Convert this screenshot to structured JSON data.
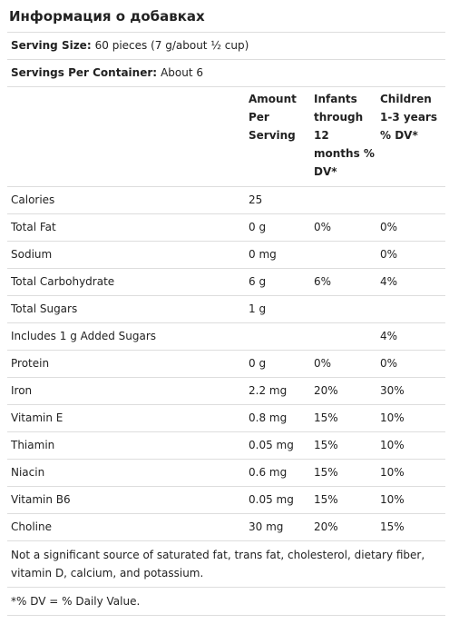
{
  "title": "Информация о добавках",
  "serving_size": {
    "label": "Serving Size:",
    "value": "60 pieces (7 g/about ½ cup)"
  },
  "servings_per_container": {
    "label": "Servings Per Container:",
    "value": "About 6"
  },
  "table": {
    "header": [
      "Amount Per Serving",
      "Infants through 12 months % DV*",
      "Children 1-3 years % DV*"
    ],
    "rows": [
      [
        "Calories",
        "25",
        null,
        null
      ],
      [
        "Total Fat",
        "0 g",
        "0%",
        "0%"
      ],
      [
        "Sodium",
        "0 mg",
        null,
        "0%"
      ],
      [
        "Total Carbohydrate",
        "6 g",
        "6%",
        "4%"
      ],
      [
        "Total Sugars",
        "1 g",
        null,
        null
      ],
      [
        "Includes 1 g Added Sugars",
        null,
        null,
        "4%"
      ],
      [
        "Protein",
        "0 g",
        "0%",
        "0%"
      ],
      [
        "Iron",
        "2.2 mg",
        "20%",
        "30%"
      ],
      [
        "Vitamin E",
        "0.8 mg",
        "15%",
        "10%"
      ],
      [
        "Thiamin",
        "0.05 mg",
        "15%",
        "10%"
      ],
      [
        "Niacin",
        "0.6 mg",
        "15%",
        "10%"
      ],
      [
        "Vitamin B6",
        "0.05 mg",
        "15%",
        "10%"
      ],
      [
        "Choline",
        "30 mg",
        "20%",
        "15%"
      ]
    ]
  },
  "footnotes": [
    "Not a significant source of saturated fat, trans fat, cholesterol, dietary fiber, vitamin D, calcium, and potassium.",
    "*% DV = % Daily Value."
  ]
}
